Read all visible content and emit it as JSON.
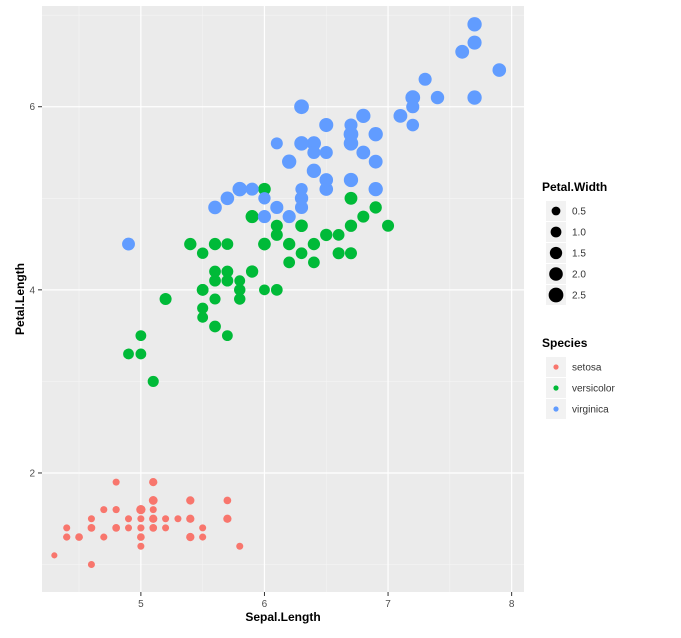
{
  "chart_data": {
    "type": "scatter",
    "xlabel": "Sepal.Length",
    "ylabel": "Petal.Length",
    "xlim": [
      4.2,
      8.1
    ],
    "ylim": [
      0.7,
      7.1
    ],
    "x_ticks": [
      "5",
      "6",
      "7",
      "8"
    ],
    "y_ticks": [
      "2",
      "4",
      "6"
    ],
    "grid": true,
    "legend_position": "right",
    "size_legend": {
      "title": "Petal.Width",
      "entries": [
        {
          "label": "0.5",
          "value": 0.5
        },
        {
          "label": "1.0",
          "value": 1.0
        },
        {
          "label": "1.5",
          "value": 1.5
        },
        {
          "label": "2.0",
          "value": 2.0
        },
        {
          "label": "2.5",
          "value": 2.5
        }
      ]
    },
    "color_legend": {
      "title": "Species",
      "entries": [
        {
          "label": "setosa",
          "color": "#F8766D"
        },
        {
          "label": "versicolor",
          "color": "#00BA38"
        },
        {
          "label": "virginica",
          "color": "#619CFF"
        }
      ]
    },
    "series": [
      {
        "name": "setosa",
        "color": "#F8766D",
        "points": [
          [
            5.1,
            1.4,
            0.2
          ],
          [
            4.9,
            1.4,
            0.2
          ],
          [
            4.7,
            1.3,
            0.2
          ],
          [
            4.6,
            1.5,
            0.2
          ],
          [
            5.0,
            1.4,
            0.2
          ],
          [
            5.4,
            1.7,
            0.4
          ],
          [
            4.6,
            1.4,
            0.3
          ],
          [
            5.0,
            1.5,
            0.2
          ],
          [
            4.4,
            1.4,
            0.2
          ],
          [
            4.9,
            1.5,
            0.1
          ],
          [
            5.4,
            1.5,
            0.2
          ],
          [
            4.8,
            1.6,
            0.2
          ],
          [
            4.8,
            1.4,
            0.1
          ],
          [
            4.3,
            1.1,
            0.1
          ],
          [
            5.8,
            1.2,
            0.2
          ],
          [
            5.7,
            1.5,
            0.4
          ],
          [
            5.4,
            1.3,
            0.4
          ],
          [
            5.1,
            1.4,
            0.3
          ],
          [
            5.7,
            1.7,
            0.3
          ],
          [
            5.1,
            1.5,
            0.3
          ],
          [
            5.4,
            1.7,
            0.2
          ],
          [
            5.1,
            1.5,
            0.4
          ],
          [
            4.6,
            1.0,
            0.2
          ],
          [
            5.1,
            1.7,
            0.5
          ],
          [
            4.8,
            1.9,
            0.2
          ],
          [
            5.0,
            1.6,
            0.2
          ],
          [
            5.0,
            1.6,
            0.4
          ],
          [
            5.2,
            1.5,
            0.2
          ],
          [
            5.2,
            1.4,
            0.2
          ],
          [
            4.7,
            1.6,
            0.2
          ],
          [
            4.8,
            1.6,
            0.2
          ],
          [
            5.4,
            1.5,
            0.4
          ],
          [
            5.2,
            1.5,
            0.1
          ],
          [
            5.5,
            1.4,
            0.2
          ],
          [
            4.9,
            1.5,
            0.2
          ],
          [
            5.0,
            1.2,
            0.2
          ],
          [
            5.5,
            1.3,
            0.2
          ],
          [
            4.9,
            1.4,
            0.1
          ],
          [
            4.4,
            1.3,
            0.2
          ],
          [
            5.1,
            1.5,
            0.2
          ],
          [
            5.0,
            1.3,
            0.3
          ],
          [
            4.5,
            1.3,
            0.3
          ],
          [
            4.4,
            1.3,
            0.2
          ],
          [
            5.0,
            1.6,
            0.6
          ],
          [
            5.1,
            1.9,
            0.4
          ],
          [
            4.8,
            1.4,
            0.3
          ],
          [
            5.1,
            1.6,
            0.2
          ],
          [
            4.6,
            1.4,
            0.2
          ],
          [
            5.3,
            1.5,
            0.2
          ],
          [
            5.0,
            1.4,
            0.2
          ]
        ]
      },
      {
        "name": "versicolor",
        "color": "#00BA38",
        "points": [
          [
            7.0,
            4.7,
            1.4
          ],
          [
            6.4,
            4.5,
            1.5
          ],
          [
            6.9,
            4.9,
            1.5
          ],
          [
            5.5,
            4.0,
            1.3
          ],
          [
            6.5,
            4.6,
            1.5
          ],
          [
            5.7,
            4.5,
            1.3
          ],
          [
            6.3,
            4.7,
            1.6
          ],
          [
            4.9,
            3.3,
            1.0
          ],
          [
            6.6,
            4.6,
            1.3
          ],
          [
            5.2,
            3.9,
            1.4
          ],
          [
            5.0,
            3.5,
            1.0
          ],
          [
            5.9,
            4.2,
            1.5
          ],
          [
            6.0,
            4.0,
            1.0
          ],
          [
            6.1,
            4.7,
            1.4
          ],
          [
            5.6,
            3.6,
            1.3
          ],
          [
            6.7,
            4.4,
            1.4
          ],
          [
            5.6,
            4.5,
            1.5
          ],
          [
            5.8,
            4.1,
            1.0
          ],
          [
            6.2,
            4.5,
            1.5
          ],
          [
            5.6,
            3.9,
            1.1
          ],
          [
            5.9,
            4.8,
            1.8
          ],
          [
            6.1,
            4.0,
            1.3
          ],
          [
            6.3,
            4.9,
            1.5
          ],
          [
            6.1,
            4.7,
            1.2
          ],
          [
            6.4,
            4.3,
            1.3
          ],
          [
            6.6,
            4.4,
            1.4
          ],
          [
            6.8,
            4.8,
            1.4
          ],
          [
            6.7,
            5.0,
            1.7
          ],
          [
            6.0,
            4.5,
            1.5
          ],
          [
            5.7,
            3.5,
            1.0
          ],
          [
            5.5,
            3.8,
            1.1
          ],
          [
            5.5,
            3.7,
            1.0
          ],
          [
            5.8,
            3.9,
            1.2
          ],
          [
            6.0,
            5.1,
            1.6
          ],
          [
            5.4,
            4.5,
            1.5
          ],
          [
            6.0,
            4.5,
            1.6
          ],
          [
            6.7,
            4.7,
            1.5
          ],
          [
            6.3,
            4.4,
            1.3
          ],
          [
            5.6,
            4.1,
            1.3
          ],
          [
            5.5,
            4.0,
            1.3
          ],
          [
            5.5,
            4.4,
            1.2
          ],
          [
            6.1,
            4.6,
            1.4
          ],
          [
            5.8,
            4.0,
            1.2
          ],
          [
            5.0,
            3.3,
            1.0
          ],
          [
            5.6,
            4.2,
            1.3
          ],
          [
            5.7,
            4.2,
            1.2
          ],
          [
            5.7,
            4.2,
            1.3
          ],
          [
            6.2,
            4.3,
            1.3
          ],
          [
            5.1,
            3.0,
            1.1
          ],
          [
            5.7,
            4.1,
            1.3
          ]
        ]
      },
      {
        "name": "virginica",
        "color": "#619CFF",
        "points": [
          [
            6.3,
            6.0,
            2.5
          ],
          [
            5.8,
            5.1,
            1.9
          ],
          [
            7.1,
            5.9,
            2.1
          ],
          [
            6.3,
            5.6,
            1.8
          ],
          [
            6.5,
            5.8,
            2.2
          ],
          [
            7.6,
            6.6,
            2.1
          ],
          [
            4.9,
            4.5,
            1.7
          ],
          [
            7.3,
            6.3,
            1.8
          ],
          [
            6.7,
            5.8,
            1.8
          ],
          [
            7.2,
            6.1,
            2.5
          ],
          [
            6.5,
            5.1,
            2.0
          ],
          [
            6.4,
            5.3,
            1.9
          ],
          [
            6.8,
            5.5,
            2.1
          ],
          [
            5.7,
            5.0,
            2.0
          ],
          [
            5.8,
            5.1,
            2.4
          ],
          [
            6.4,
            5.3,
            2.3
          ],
          [
            6.5,
            5.5,
            1.8
          ],
          [
            7.7,
            6.7,
            2.2
          ],
          [
            7.7,
            6.9,
            2.3
          ],
          [
            6.0,
            5.0,
            1.5
          ],
          [
            6.9,
            5.7,
            2.3
          ],
          [
            5.6,
            4.9,
            2.0
          ],
          [
            7.7,
            6.7,
            2.0
          ],
          [
            6.3,
            4.9,
            1.8
          ],
          [
            6.7,
            5.7,
            2.1
          ],
          [
            7.2,
            6.0,
            1.8
          ],
          [
            6.2,
            4.8,
            1.8
          ],
          [
            6.1,
            4.9,
            1.8
          ],
          [
            6.4,
            5.6,
            2.1
          ],
          [
            7.2,
            5.8,
            1.6
          ],
          [
            7.4,
            6.1,
            1.9
          ],
          [
            7.9,
            6.4,
            2.0
          ],
          [
            6.4,
            5.6,
            2.2
          ],
          [
            6.3,
            5.1,
            1.5
          ],
          [
            6.1,
            5.6,
            1.4
          ],
          [
            7.7,
            6.1,
            2.3
          ],
          [
            6.3,
            5.6,
            2.4
          ],
          [
            6.4,
            5.5,
            1.8
          ],
          [
            6.0,
            4.8,
            1.8
          ],
          [
            6.9,
            5.4,
            2.1
          ],
          [
            6.7,
            5.6,
            2.4
          ],
          [
            6.9,
            5.1,
            2.3
          ],
          [
            5.8,
            5.1,
            1.9
          ],
          [
            6.8,
            5.9,
            2.3
          ],
          [
            6.7,
            5.7,
            2.5
          ],
          [
            6.7,
            5.2,
            2.3
          ],
          [
            6.3,
            5.0,
            1.9
          ],
          [
            6.5,
            5.2,
            2.0
          ],
          [
            6.2,
            5.4,
            2.3
          ],
          [
            5.9,
            5.1,
            1.8
          ]
        ]
      }
    ]
  }
}
